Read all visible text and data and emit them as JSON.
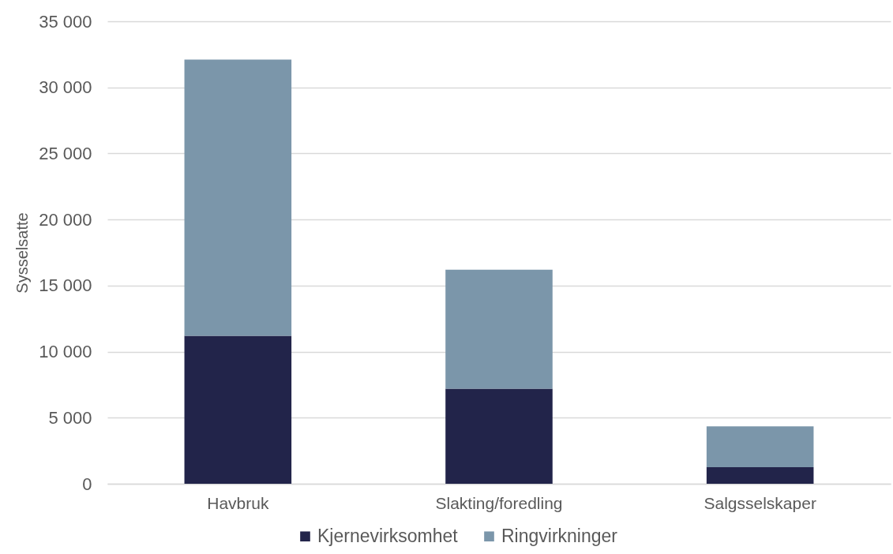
{
  "chart_data": {
    "type": "bar",
    "stacked": true,
    "ylabel": "Sysselsatte",
    "categories": [
      "Havbruk",
      "Slakting/foredling",
      "Salgsselskaper"
    ],
    "series": [
      {
        "name": "Kjernevirksomhet",
        "color": "#22244a",
        "values": [
          11200,
          7200,
          1250
        ]
      },
      {
        "name": "Ringvirkninger",
        "color": "#7b96aa",
        "values": [
          20900,
          9000,
          3100
        ]
      }
    ],
    "ylim": [
      0,
      35000
    ],
    "yticks": [
      0,
      {
        "value": 5000,
        "label": "5 000"
      },
      {
        "value": 10000,
        "label": "10 000"
      },
      {
        "value": 15000,
        "label": "15 000"
      },
      {
        "value": 20000,
        "label": "20 000"
      },
      {
        "value": 25000,
        "label": "25 000"
      },
      {
        "value": 30000,
        "label": "30 000"
      },
      {
        "value": 35000,
        "label": "35 000"
      }
    ],
    "grid": "y",
    "legend": "bottom"
  }
}
